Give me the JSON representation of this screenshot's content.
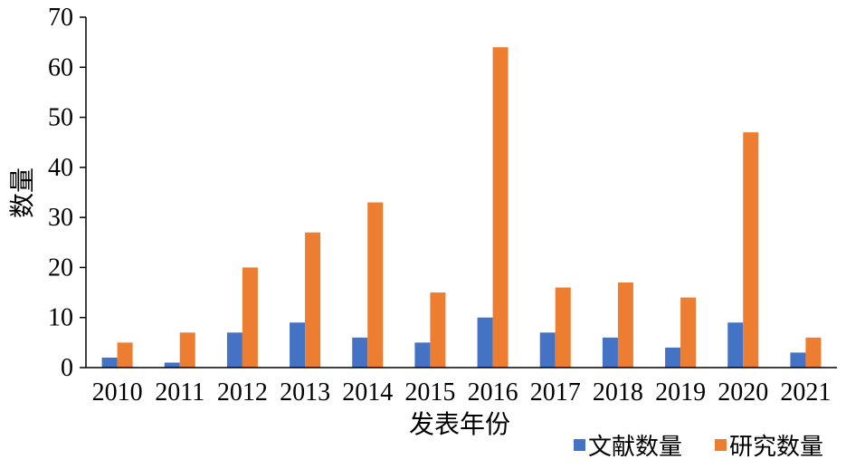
{
  "chart_data": {
    "type": "bar",
    "categories": [
      "2010",
      "2011",
      "2012",
      "2013",
      "2014",
      "2015",
      "2016",
      "2017",
      "2018",
      "2019",
      "2020",
      "2021"
    ],
    "series": [
      {
        "name": "文献数量",
        "color": "#4472C4",
        "values": [
          2,
          1,
          7,
          9,
          6,
          5,
          10,
          7,
          6,
          4,
          9,
          3
        ]
      },
      {
        "name": "研究数量",
        "color": "#ED7D31",
        "values": [
          5,
          7,
          20,
          27,
          33,
          15,
          64,
          16,
          17,
          14,
          47,
          6
        ]
      }
    ],
    "xlabel": "发表年份",
    "ylabel": "数量",
    "ylim": [
      0,
      70
    ],
    "yticks": [
      0,
      10,
      20,
      30,
      40,
      50,
      60,
      70
    ],
    "grid": false,
    "legend_position": "bottom-right"
  }
}
